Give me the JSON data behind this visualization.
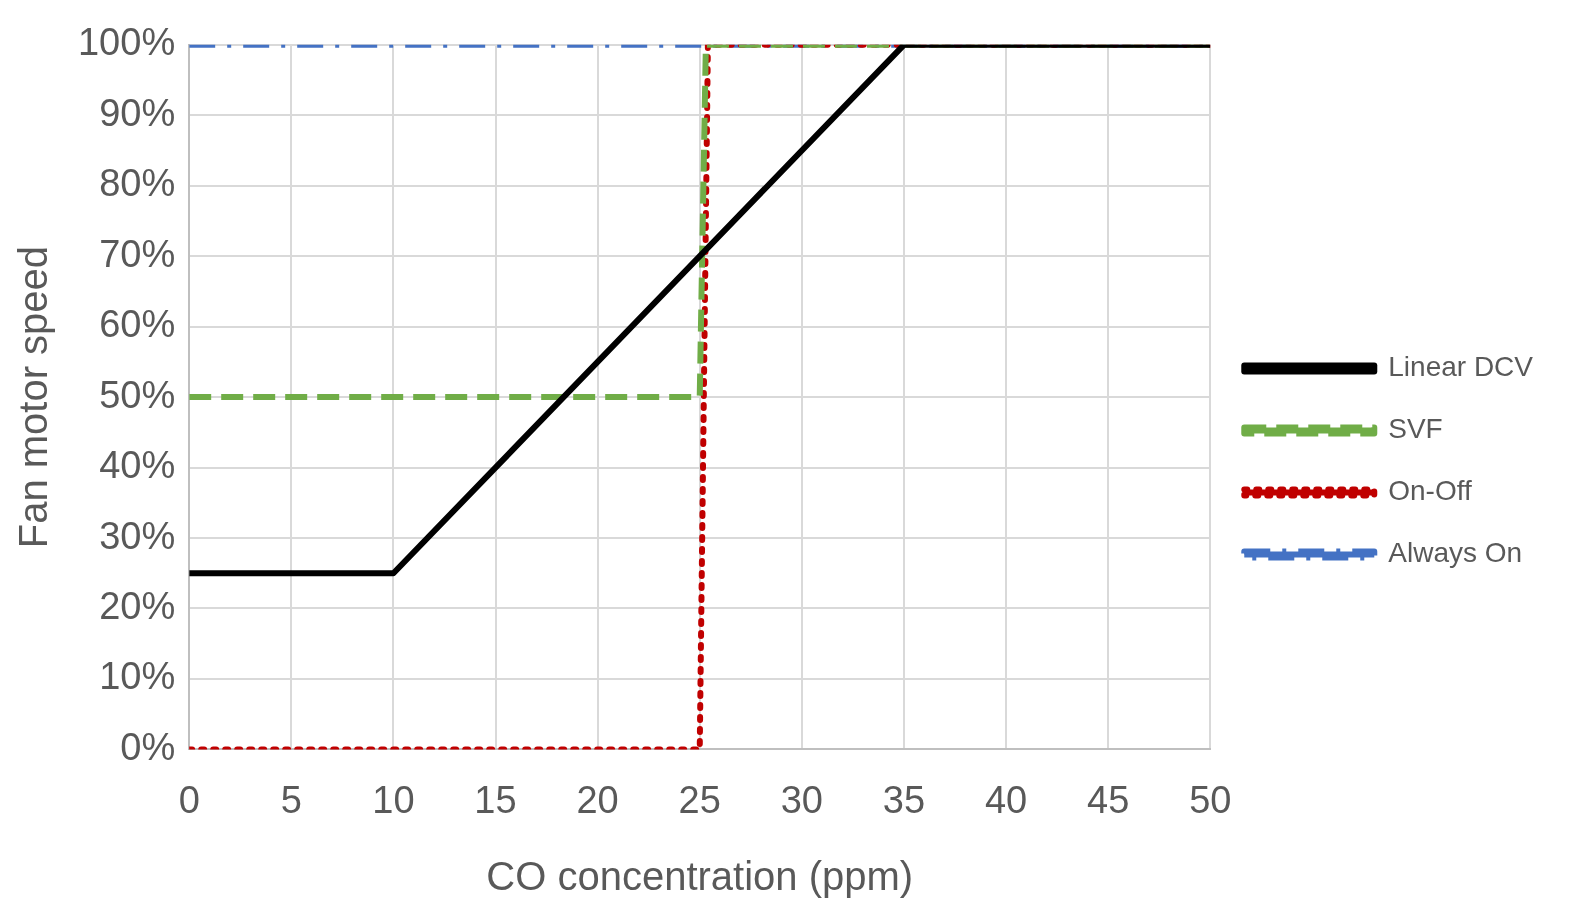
{
  "chart_data": {
    "type": "line",
    "xlabel": "CO concentration (ppm)",
    "ylabel": "Fan motor speed",
    "xlim": [
      0,
      50
    ],
    "ylim": [
      0,
      100
    ],
    "xticks": [
      0,
      5,
      10,
      15,
      20,
      25,
      30,
      35,
      40,
      45,
      50
    ],
    "yticks": [
      {
        "value": 0,
        "label": "0%"
      },
      {
        "value": 10,
        "label": "10%"
      },
      {
        "value": 20,
        "label": "20%"
      },
      {
        "value": 30,
        "label": "30%"
      },
      {
        "value": 40,
        "label": "40%"
      },
      {
        "value": 50,
        "label": "50%"
      },
      {
        "value": 60,
        "label": "60%"
      },
      {
        "value": 70,
        "label": "70%"
      },
      {
        "value": 80,
        "label": "80%"
      },
      {
        "value": 90,
        "label": "90%"
      },
      {
        "value": 100,
        "label": "100%"
      }
    ],
    "grid": true,
    "legend": "right",
    "series": [
      {
        "name": "Linear DCV",
        "color": "#000000",
        "line_style": "solid",
        "x": [
          0,
          10,
          35,
          50
        ],
        "values": [
          25,
          25,
          100,
          100
        ]
      },
      {
        "name": "SVF",
        "color": "#70ad47",
        "line_style": "dashed",
        "x": [
          0,
          25,
          25.3,
          50
        ],
        "values": [
          50,
          50,
          100,
          100
        ]
      },
      {
        "name": "On-Off",
        "color": "#c00000",
        "line_style": "dotted",
        "x": [
          0,
          25,
          25.4,
          50
        ],
        "values": [
          0,
          0,
          100,
          100
        ]
      },
      {
        "name": "Always On",
        "color": "#4472c4",
        "line_style": "dashdot",
        "x": [
          0,
          50
        ],
        "values": [
          100,
          100
        ]
      }
    ]
  }
}
